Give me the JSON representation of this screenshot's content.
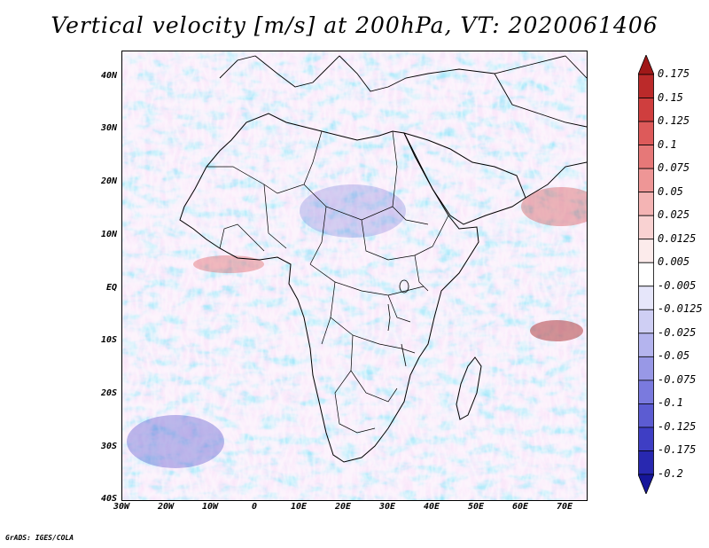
{
  "title": "Vertical velocity [m/s] at 200hPa, VT: 2020061406",
  "credit": "GrADS: IGES/COLA",
  "map": {
    "lat_labels": [
      "40N",
      "30N",
      "20N",
      "10N",
      "EQ",
      "10S",
      "20S",
      "30S",
      "40S"
    ],
    "lon_labels": [
      "30W",
      "20W",
      "10W",
      "0",
      "10E",
      "20E",
      "30E",
      "40E",
      "50E",
      "60E",
      "70E"
    ],
    "lon_range": [
      -30,
      75
    ],
    "lat_range": [
      -40,
      45
    ]
  },
  "colorbar": {
    "labels": [
      "0.175",
      "0.15",
      "0.125",
      "0.1",
      "0.075",
      "0.05",
      "0.025",
      "0.0125",
      "0.005",
      "-0.005",
      "-0.0125",
      "-0.025",
      "-0.05",
      "-0.075",
      "-0.1",
      "-0.125",
      "-0.175",
      "-0.2"
    ],
    "colors": [
      "#a01818",
      "#bb2a2a",
      "#cf3e3e",
      "#dd5a5a",
      "#e67878",
      "#ee9696",
      "#f4b4b4",
      "#f9d2d2",
      "#fcebeb",
      "#ffffff",
      "#e6e6fa",
      "#cfcff4",
      "#b4b4ee",
      "#9898e6",
      "#7a7ade",
      "#5c5cd2",
      "#3e3ec4",
      "#2828b0",
      "#16169a"
    ]
  }
}
